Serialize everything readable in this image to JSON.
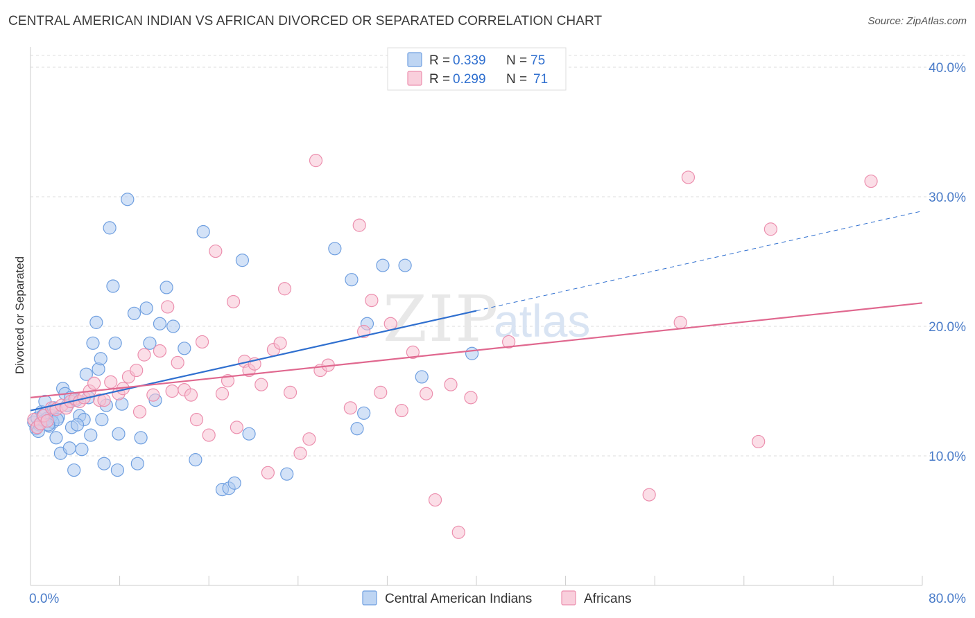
{
  "header": {
    "title": "CENTRAL AMERICAN INDIAN VS AFRICAN DIVORCED OR SEPARATED CORRELATION CHART",
    "source": "Source: ZipAtlas.com"
  },
  "watermark": {
    "zip": "ZIP",
    "atlas": "atlas"
  },
  "legend_top": [
    {
      "r_label": "R =",
      "r_value": "0.339",
      "n_label": "N =",
      "n_value": "75",
      "color": "#8fb6ea"
    },
    {
      "r_label": "R =",
      "r_value": "0.299",
      "n_label": "N =",
      "n_value": "71",
      "color": "#f3a8c0"
    }
  ],
  "legend_bottom": [
    {
      "label": "Central American Indians",
      "color": "#8fb6ea"
    },
    {
      "label": "Africans",
      "color": "#f3a8c0"
    }
  ],
  "colors": {
    "blue_fill": "#aecbf0",
    "blue_stroke": "#6f9fe0",
    "blue_line": "#2f6fcf",
    "pink_fill": "#f7c3d3",
    "pink_stroke": "#ec8fae",
    "pink_line": "#e0688f",
    "grid": "#dddddd"
  },
  "chart_data": {
    "type": "scatter",
    "title": "CENTRAL AMERICAN INDIAN VS AFRICAN DIVORCED OR SEPARATED CORRELATION CHART",
    "xlabel": "",
    "ylabel": "Divorced or Separated",
    "xlim": [
      0,
      80
    ],
    "ylim": [
      0,
      42
    ],
    "x_tick_labels": [
      "0.0%",
      "80.0%"
    ],
    "y_ticks": [
      10,
      20,
      30,
      40
    ],
    "y_tick_labels": [
      "10.0%",
      "20.0%",
      "30.0%",
      "40.0%"
    ],
    "grid": true,
    "legend_position": "top-center",
    "series": [
      {
        "name": "Central American Indians",
        "r": 0.339,
        "n": 75,
        "trend": {
          "x0": 0,
          "y0": 13.5,
          "x1": 40,
          "y1": 21.2,
          "dashed_to_x": 80,
          "dashed_to_y": 28.9
        },
        "points": [
          [
            0.3,
            12.6
          ],
          [
            0.5,
            12.1
          ],
          [
            0.6,
            12.9
          ],
          [
            0.8,
            12.4
          ],
          [
            1.0,
            13.4
          ],
          [
            1.2,
            12.7
          ],
          [
            1.3,
            14.2
          ],
          [
            1.5,
            12.9
          ],
          [
            1.7,
            12.3
          ],
          [
            1.9,
            13.1
          ],
          [
            2.1,
            13.7
          ],
          [
            2.3,
            11.4
          ],
          [
            2.5,
            13.0
          ],
          [
            2.7,
            10.2
          ],
          [
            2.9,
            15.2
          ],
          [
            3.1,
            14.8
          ],
          [
            3.3,
            13.9
          ],
          [
            3.5,
            10.6
          ],
          [
            3.7,
            12.2
          ],
          [
            3.9,
            8.9
          ],
          [
            4.1,
            14.3
          ],
          [
            4.4,
            13.1
          ],
          [
            4.6,
            10.5
          ],
          [
            4.8,
            12.8
          ],
          [
            5.0,
            16.3
          ],
          [
            5.2,
            14.5
          ],
          [
            5.4,
            11.6
          ],
          [
            5.6,
            18.7
          ],
          [
            5.9,
            20.3
          ],
          [
            6.1,
            16.7
          ],
          [
            6.3,
            17.5
          ],
          [
            6.6,
            9.4
          ],
          [
            6.8,
            13.9
          ],
          [
            7.1,
            27.6
          ],
          [
            7.4,
            23.1
          ],
          [
            7.6,
            18.7
          ],
          [
            7.9,
            11.7
          ],
          [
            8.2,
            14.0
          ],
          [
            8.7,
            29.8
          ],
          [
            9.3,
            21.0
          ],
          [
            9.6,
            9.4
          ],
          [
            9.9,
            11.4
          ],
          [
            10.4,
            21.4
          ],
          [
            10.7,
            18.7
          ],
          [
            11.2,
            14.3
          ],
          [
            11.6,
            20.2
          ],
          [
            12.2,
            23.0
          ],
          [
            12.8,
            20.0
          ],
          [
            13.8,
            18.3
          ],
          [
            14.8,
            9.7
          ],
          [
            15.5,
            27.3
          ],
          [
            17.2,
            7.4
          ],
          [
            17.8,
            7.5
          ],
          [
            18.3,
            7.9
          ],
          [
            19.0,
            25.1
          ],
          [
            19.6,
            11.7
          ],
          [
            23.0,
            8.6
          ],
          [
            27.3,
            26.0
          ],
          [
            28.8,
            23.6
          ],
          [
            29.3,
            12.1
          ],
          [
            29.9,
            13.3
          ],
          [
            30.2,
            20.2
          ],
          [
            31.6,
            24.7
          ],
          [
            33.6,
            24.7
          ],
          [
            35.1,
            16.1
          ],
          [
            39.6,
            17.9
          ],
          [
            3.6,
            14.5
          ],
          [
            4.2,
            12.4
          ],
          [
            6.4,
            12.8
          ],
          [
            7.8,
            8.9
          ],
          [
            2.0,
            12.6
          ],
          [
            1.1,
            13.1
          ],
          [
            0.7,
            11.9
          ],
          [
            2.4,
            12.8
          ],
          [
            1.6,
            12.4
          ]
        ]
      },
      {
        "name": "Africans",
        "r": 0.299,
        "n": 71,
        "trend": {
          "x0": 0,
          "y0": 14.5,
          "x1": 80,
          "y1": 21.8
        },
        "points": [
          [
            0.3,
            12.8
          ],
          [
            0.6,
            12.2
          ],
          [
            0.9,
            12.5
          ],
          [
            1.2,
            13.1
          ],
          [
            1.5,
            12.7
          ],
          [
            1.9,
            13.7
          ],
          [
            2.3,
            13.6
          ],
          [
            2.8,
            13.9
          ],
          [
            3.2,
            13.7
          ],
          [
            3.6,
            14.2
          ],
          [
            4.0,
            14.4
          ],
          [
            4.4,
            14.2
          ],
          [
            4.8,
            14.5
          ],
          [
            5.3,
            15.0
          ],
          [
            5.7,
            15.6
          ],
          [
            6.2,
            14.3
          ],
          [
            6.6,
            14.3
          ],
          [
            7.2,
            15.7
          ],
          [
            7.9,
            14.8
          ],
          [
            8.3,
            15.2
          ],
          [
            8.8,
            16.1
          ],
          [
            9.5,
            16.6
          ],
          [
            9.8,
            13.4
          ],
          [
            10.2,
            17.8
          ],
          [
            11.0,
            14.7
          ],
          [
            11.6,
            18.1
          ],
          [
            12.3,
            21.5
          ],
          [
            12.7,
            15.0
          ],
          [
            13.2,
            17.2
          ],
          [
            13.8,
            15.1
          ],
          [
            14.4,
            14.7
          ],
          [
            14.9,
            12.8
          ],
          [
            15.4,
            18.8
          ],
          [
            16.0,
            11.6
          ],
          [
            16.6,
            25.8
          ],
          [
            17.2,
            14.8
          ],
          [
            17.7,
            15.8
          ],
          [
            18.2,
            21.9
          ],
          [
            18.5,
            12.2
          ],
          [
            19.2,
            17.3
          ],
          [
            19.6,
            16.6
          ],
          [
            20.1,
            17.1
          ],
          [
            20.7,
            15.5
          ],
          [
            21.3,
            8.7
          ],
          [
            21.8,
            18.2
          ],
          [
            22.4,
            18.7
          ],
          [
            22.8,
            22.9
          ],
          [
            23.3,
            14.9
          ],
          [
            24.2,
            10.2
          ],
          [
            25.0,
            11.3
          ],
          [
            25.6,
            32.8
          ],
          [
            26.0,
            16.6
          ],
          [
            26.7,
            17.0
          ],
          [
            28.7,
            13.7
          ],
          [
            29.5,
            27.8
          ],
          [
            29.9,
            19.6
          ],
          [
            30.6,
            22.0
          ],
          [
            31.4,
            14.9
          ],
          [
            32.3,
            20.2
          ],
          [
            33.3,
            13.5
          ],
          [
            34.3,
            18.0
          ],
          [
            35.5,
            14.8
          ],
          [
            36.3,
            6.6
          ],
          [
            37.7,
            15.5
          ],
          [
            38.4,
            4.1
          ],
          [
            39.5,
            14.5
          ],
          [
            42.9,
            18.8
          ],
          [
            55.5,
            7.0
          ],
          [
            58.3,
            20.3
          ],
          [
            59.0,
            31.5
          ],
          [
            66.4,
            27.5
          ]
        ],
        "extra_points": [
          [
            65.3,
            11.1
          ],
          [
            75.4,
            31.2
          ]
        ]
      }
    ]
  }
}
